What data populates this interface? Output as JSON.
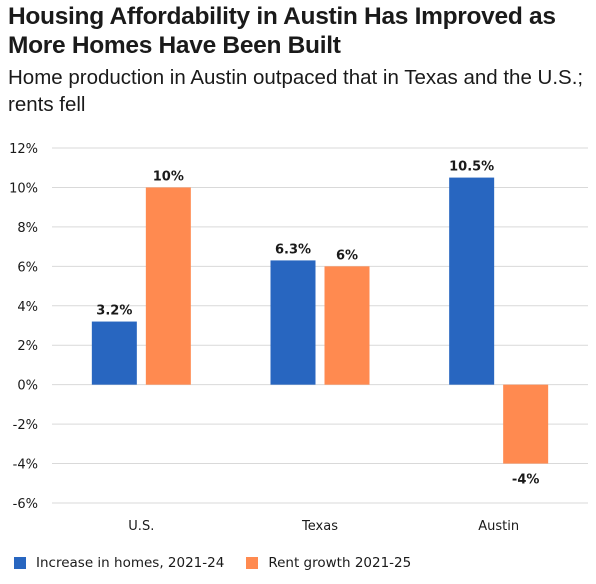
{
  "title": "Housing Affordability in Austin Has Improved as More Homes Have Been Built",
  "subtitle": "Home production in Austin outpaced that in Texas and the U.S.; rents fell",
  "chart_data": {
    "type": "bar",
    "categories": [
      "U.S.",
      "Texas",
      "Austin"
    ],
    "series": [
      {
        "name": "Increase in homes, 2021-24",
        "color": "#2866c0",
        "values": [
          3.2,
          6.3,
          10.5
        ],
        "labels": [
          "3.2%",
          "6.3%",
          "10.5%"
        ]
      },
      {
        "name": "Rent growth 2021-25",
        "color": "#ff8a50",
        "values": [
          10,
          6,
          -4
        ],
        "labels": [
          "10%",
          "6%",
          "-4%"
        ]
      }
    ],
    "ylim": [
      -6,
      12
    ],
    "yticks": [
      12,
      10,
      8,
      6,
      4,
      2,
      0,
      -2,
      -4,
      -6
    ],
    "ytick_labels": [
      "12%",
      "10%",
      "8%",
      "6%",
      "4%",
      "2%",
      "0%",
      "-2%",
      "-4%",
      "-6%"
    ],
    "grid": true,
    "legend_position": "bottom-left",
    "xlabel": "",
    "ylabel": ""
  }
}
